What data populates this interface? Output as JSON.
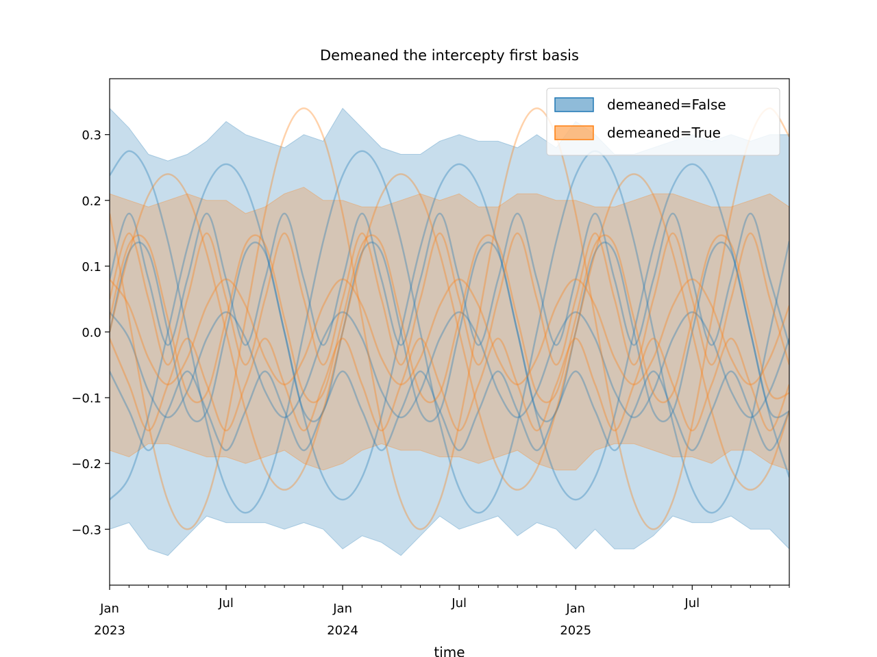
{
  "chart_data": {
    "type": "band-lines",
    "title": "Demeaned the intercepty first basis",
    "x_label": "time",
    "x": [
      "2023-01",
      "2023-02",
      "2023-03",
      "2023-04",
      "2023-05",
      "2023-06",
      "2023-07",
      "2023-08",
      "2023-09",
      "2023-10",
      "2023-11",
      "2023-12",
      "2024-01",
      "2024-02",
      "2024-03",
      "2024-04",
      "2024-05",
      "2024-06",
      "2024-07",
      "2024-08",
      "2024-09",
      "2024-10",
      "2024-11",
      "2024-12",
      "2025-01",
      "2025-02",
      "2025-03",
      "2025-04",
      "2025-05",
      "2025-06",
      "2025-07",
      "2025-08",
      "2025-09",
      "2025-10",
      "2025-11",
      "2025-12"
    ],
    "xlim": [
      "2023-01",
      "2025-12"
    ],
    "xticks": [
      {
        "value": "2023-01",
        "label": "Jan",
        "sublabel": "2023"
      },
      {
        "value": "2023-07",
        "label": "Jul"
      },
      {
        "value": "2024-01",
        "label": "Jan",
        "sublabel": "2024"
      },
      {
        "value": "2024-07",
        "label": "Jul"
      },
      {
        "value": "2025-01",
        "label": "Jan",
        "sublabel": "2025"
      },
      {
        "value": "2025-07",
        "label": "Jul"
      }
    ],
    "ylim": [
      -0.385,
      0.385
    ],
    "yticks": [
      {
        "value": -0.3,
        "label": "−0.3"
      },
      {
        "value": -0.2,
        "label": "−0.2"
      },
      {
        "value": -0.1,
        "label": "−0.1"
      },
      {
        "value": 0,
        "label": "0.0"
      },
      0.1,
      0.2,
      0.3
    ],
    "legend": "upper right",
    "series": [
      {
        "name": "demeaned=False",
        "color": "#1f77b4",
        "band_upper": [
          0.34,
          0.31,
          0.27,
          0.26,
          0.27,
          0.29,
          0.32,
          0.3,
          0.29,
          0.28,
          0.3,
          0.29,
          0.34,
          0.31,
          0.28,
          0.27,
          0.27,
          0.29,
          0.3,
          0.29,
          0.29,
          0.28,
          0.3,
          0.28,
          0.32,
          0.3,
          0.27,
          0.27,
          0.28,
          0.29,
          0.3,
          0.29,
          0.3,
          0.29,
          0.3,
          0.3
        ],
        "band_lower": [
          -0.3,
          -0.29,
          -0.33,
          -0.34,
          -0.31,
          -0.28,
          -0.29,
          -0.29,
          -0.29,
          -0.3,
          -0.29,
          -0.3,
          -0.33,
          -0.31,
          -0.32,
          -0.34,
          -0.31,
          -0.28,
          -0.3,
          -0.29,
          -0.28,
          -0.31,
          -0.29,
          -0.3,
          -0.33,
          -0.3,
          -0.33,
          -0.33,
          -0.31,
          -0.28,
          -0.29,
          -0.29,
          -0.28,
          -0.3,
          -0.3,
          -0.33
        ],
        "lines": [
          [
            0.238,
            0.275,
            0.238,
            0.138,
            0,
            -0.138,
            -0.238,
            -0.275,
            -0.238,
            -0.138,
            0,
            0.138,
            0.238,
            0.275,
            0.238,
            0.138,
            0,
            -0.138,
            -0.238,
            -0.275,
            -0.238,
            -0.138,
            0,
            0.138,
            0.238,
            0.275,
            0.238,
            0.138,
            0,
            -0.138,
            -0.238,
            -0.275,
            -0.238,
            -0.138,
            0,
            0.138
          ],
          [
            -0.255,
            -0.221,
            -0.128,
            0,
            0.128,
            0.221,
            0.255,
            0.221,
            0.128,
            0,
            -0.128,
            -0.221,
            -0.255,
            -0.221,
            -0.128,
            0,
            0.128,
            0.221,
            0.255,
            0.221,
            0.128,
            0,
            -0.128,
            -0.221,
            -0.255,
            -0.221,
            -0.128,
            0,
            0.128,
            0.221,
            0.255,
            0.221,
            0.128,
            0,
            -0.128,
            -0.221
          ],
          [
            0,
            0.121,
            0.121,
            0,
            -0.121,
            -0.121,
            0,
            0.121,
            0.121,
            0,
            -0.121,
            -0.121,
            0,
            0.121,
            0.121,
            0,
            -0.121,
            -0.121,
            0,
            0.121,
            0.121,
            0,
            -0.121,
            -0.121,
            0,
            0.121,
            0.121,
            0,
            -0.121,
            -0.121,
            0,
            0.121,
            0.121,
            0,
            -0.121,
            -0.121
          ],
          [
            0.03,
            -0.01,
            -0.09,
            -0.13,
            -0.09,
            -0.01,
            0.03,
            -0.01,
            -0.09,
            -0.13,
            -0.09,
            -0.01,
            0.03,
            -0.01,
            -0.09,
            -0.13,
            -0.09,
            -0.01,
            0.03,
            -0.01,
            -0.09,
            -0.13,
            -0.09,
            -0.01,
            0.03,
            -0.01,
            -0.09,
            -0.13,
            -0.09,
            -0.01,
            0.03,
            -0.01,
            -0.09,
            -0.13,
            -0.09,
            -0.01
          ],
          [
            -0.06,
            -0.12,
            -0.18,
            -0.12,
            -0.06,
            -0.12,
            -0.18,
            -0.12,
            -0.06,
            -0.12,
            -0.18,
            -0.12,
            -0.06,
            -0.12,
            -0.18,
            -0.12,
            -0.06,
            -0.12,
            -0.18,
            -0.12,
            -0.06,
            -0.12,
            -0.18,
            -0.12,
            -0.06,
            -0.12,
            -0.18,
            -0.12,
            -0.06,
            -0.12,
            -0.18,
            -0.12,
            -0.06,
            -0.12,
            -0.18,
            -0.12
          ],
          [
            0.08,
            0.18,
            0.08,
            -0.02,
            0.08,
            0.18,
            0.08,
            -0.02,
            0.08,
            0.18,
            0.08,
            -0.02,
            0.08,
            0.18,
            0.08,
            -0.02,
            0.08,
            0.18,
            0.08,
            -0.02,
            0.08,
            0.18,
            0.08,
            -0.02,
            0.08,
            0.18,
            0.08,
            -0.02,
            0.08,
            0.18,
            0.08,
            -0.02,
            0.08,
            0.18,
            0.08,
            -0.02
          ]
        ]
      },
      {
        "name": "demeaned=True",
        "color": "#ff7f0e",
        "band_upper": [
          0.21,
          0.2,
          0.19,
          0.2,
          0.21,
          0.2,
          0.2,
          0.18,
          0.19,
          0.21,
          0.22,
          0.2,
          0.2,
          0.19,
          0.19,
          0.2,
          0.21,
          0.2,
          0.21,
          0.19,
          0.19,
          0.21,
          0.21,
          0.2,
          0.2,
          0.19,
          0.19,
          0.2,
          0.21,
          0.21,
          0.2,
          0.19,
          0.19,
          0.2,
          0.21,
          0.19
        ],
        "band_lower": [
          -0.18,
          -0.19,
          -0.17,
          -0.17,
          -0.18,
          -0.19,
          -0.19,
          -0.2,
          -0.19,
          -0.18,
          -0.2,
          -0.21,
          -0.2,
          -0.18,
          -0.17,
          -0.18,
          -0.18,
          -0.19,
          -0.19,
          -0.2,
          -0.19,
          -0.18,
          -0.2,
          -0.21,
          -0.21,
          -0.18,
          -0.17,
          -0.17,
          -0.18,
          -0.19,
          -0.19,
          -0.2,
          -0.18,
          -0.18,
          -0.2,
          -0.21
        ],
        "lines": [
          [
            0.18,
            0.02,
            -0.14,
            -0.257,
            -0.3,
            -0.257,
            -0.14,
            0.02,
            0.18,
            0.297,
            0.34,
            0.297,
            0.18,
            0.02,
            -0.14,
            -0.257,
            -0.3,
            -0.257,
            -0.14,
            0.02,
            0.18,
            0.297,
            0.34,
            0.297,
            0.18,
            0.02,
            -0.14,
            -0.257,
            -0.3,
            -0.257,
            -0.14,
            0.02,
            0.18,
            0.297,
            0.34,
            0.297
          ],
          [
            0,
            0.12,
            0.208,
            0.24,
            0.208,
            0.12,
            0,
            -0.12,
            -0.208,
            -0.24,
            -0.208,
            -0.12,
            0,
            0.12,
            0.208,
            0.24,
            0.208,
            0.12,
            0,
            -0.12,
            -0.208,
            -0.24,
            -0.208,
            -0.12,
            0,
            0.12,
            0.208,
            0.24,
            0.208,
            0.12,
            0,
            -0.12,
            -0.208,
            -0.24,
            -0.208,
            -0.12
          ],
          [
            0.02,
            0.133,
            0.133,
            0.02,
            -0.093,
            -0.093,
            0.02,
            0.133,
            0.133,
            0.02,
            -0.093,
            -0.093,
            0.02,
            0.133,
            0.133,
            0.02,
            -0.093,
            -0.093,
            0.02,
            0.133,
            0.133,
            0.02,
            -0.093,
            -0.093,
            0.02,
            0.133,
            0.133,
            0.02,
            -0.093,
            -0.093,
            0.02,
            0.133,
            0.133,
            0.02,
            -0.093,
            -0.093
          ],
          [
            0.08,
            0.04,
            -0.04,
            -0.08,
            -0.04,
            0.04,
            0.08,
            0.04,
            -0.04,
            -0.08,
            -0.04,
            0.04,
            0.08,
            0.04,
            -0.04,
            -0.08,
            -0.04,
            0.04,
            0.08,
            0.04,
            -0.04,
            -0.08,
            -0.04,
            0.04,
            0.08,
            0.04,
            -0.04,
            -0.08,
            -0.04,
            0.04,
            0.08,
            0.04,
            -0.04,
            -0.08,
            -0.04,
            0.04
          ],
          [
            -0.01,
            -0.08,
            -0.15,
            -0.08,
            -0.01,
            -0.08,
            -0.15,
            -0.08,
            -0.01,
            -0.08,
            -0.15,
            -0.08,
            -0.01,
            -0.08,
            -0.15,
            -0.08,
            -0.01,
            -0.08,
            -0.15,
            -0.08,
            -0.01,
            -0.08,
            -0.15,
            -0.08,
            -0.01,
            -0.08,
            -0.15,
            -0.08,
            -0.01,
            -0.08,
            -0.15,
            -0.08,
            -0.01,
            -0.08,
            -0.15,
            -0.08
          ],
          [
            0.05,
            0.15,
            0.05,
            -0.05,
            0.05,
            0.15,
            0.05,
            -0.05,
            0.05,
            0.15,
            0.05,
            -0.05,
            0.05,
            0.15,
            0.05,
            -0.05,
            0.05,
            0.15,
            0.05,
            -0.05,
            0.05,
            0.15,
            0.05,
            -0.05,
            0.05,
            0.15,
            0.05,
            -0.05,
            0.05,
            0.15,
            0.05,
            -0.05,
            0.05,
            0.15,
            0.05,
            -0.05
          ]
        ]
      }
    ]
  }
}
